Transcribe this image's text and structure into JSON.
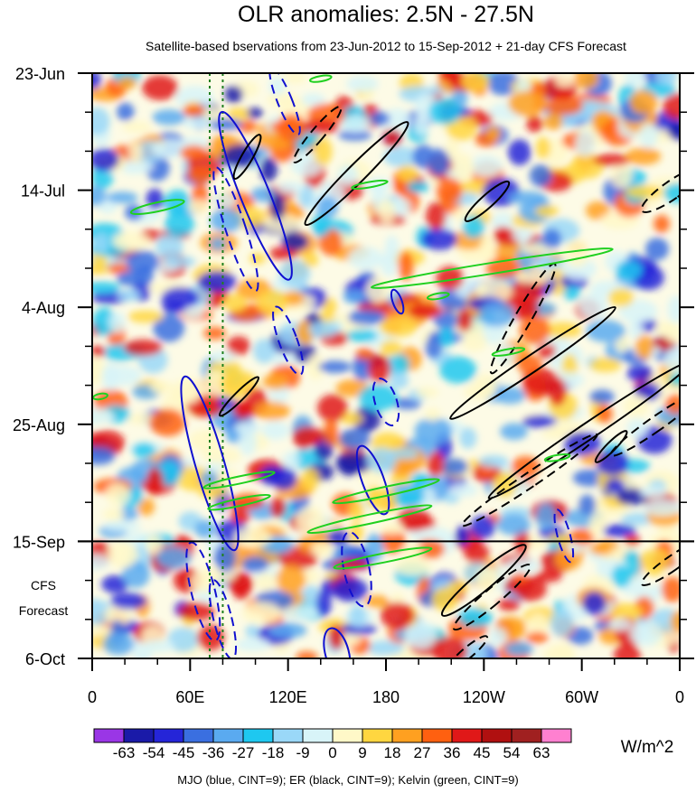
{
  "chart_data": {
    "type": "heatmap",
    "title": "OLR anomalies: 2.5N - 27.5N",
    "subtitle": "Satellite-based bservations from 23-Jun-2012 to 15-Sep-2012 + 21-day CFS Forecast",
    "x_ticks": [
      "0",
      "60E",
      "120E",
      "180",
      "120W",
      "60W",
      "0"
    ],
    "x_tick_lon": [
      0,
      60,
      120,
      180,
      240,
      300,
      360
    ],
    "y_ticks": [
      "23-Jun",
      "14-Jul",
      "4-Aug",
      "25-Aug",
      "15-Sep",
      "6-Oct"
    ],
    "y_tick_day": [
      0,
      21,
      42,
      63,
      84,
      105
    ],
    "forecast_label": [
      "CFS",
      "Forecast"
    ],
    "forecast_start_day": 84,
    "xlim": [
      0,
      360
    ],
    "ylim_days": [
      0,
      105
    ],
    "colorbar": {
      "labels": [
        "-63",
        "-54",
        "-45",
        "-36",
        "-27",
        "-18",
        "-9",
        "0",
        "9",
        "18",
        "27",
        "36",
        "45",
        "54",
        "63"
      ],
      "colors": [
        "#9a36e6",
        "#1a1aa8",
        "#2525d8",
        "#3a6fe0",
        "#5aaaf0",
        "#1ec8f0",
        "#9ad8f8",
        "#d8f4f8",
        "#fff8c8",
        "#ffd640",
        "#ffa020",
        "#ff6010",
        "#e01818",
        "#b01010",
        "#a02020",
        "#ff80d0"
      ],
      "unit": "W/m^2"
    },
    "footer": "MJO (blue, CINT=9); ER (black, CINT=9); Kelvin (green, CINT=9)",
    "guide_lines_lon": [
      72,
      80
    ],
    "contour_colors": {
      "mjo": "#1010d0",
      "er": "#000000",
      "kelvin": "#20d020",
      "guide": "#208020"
    }
  }
}
